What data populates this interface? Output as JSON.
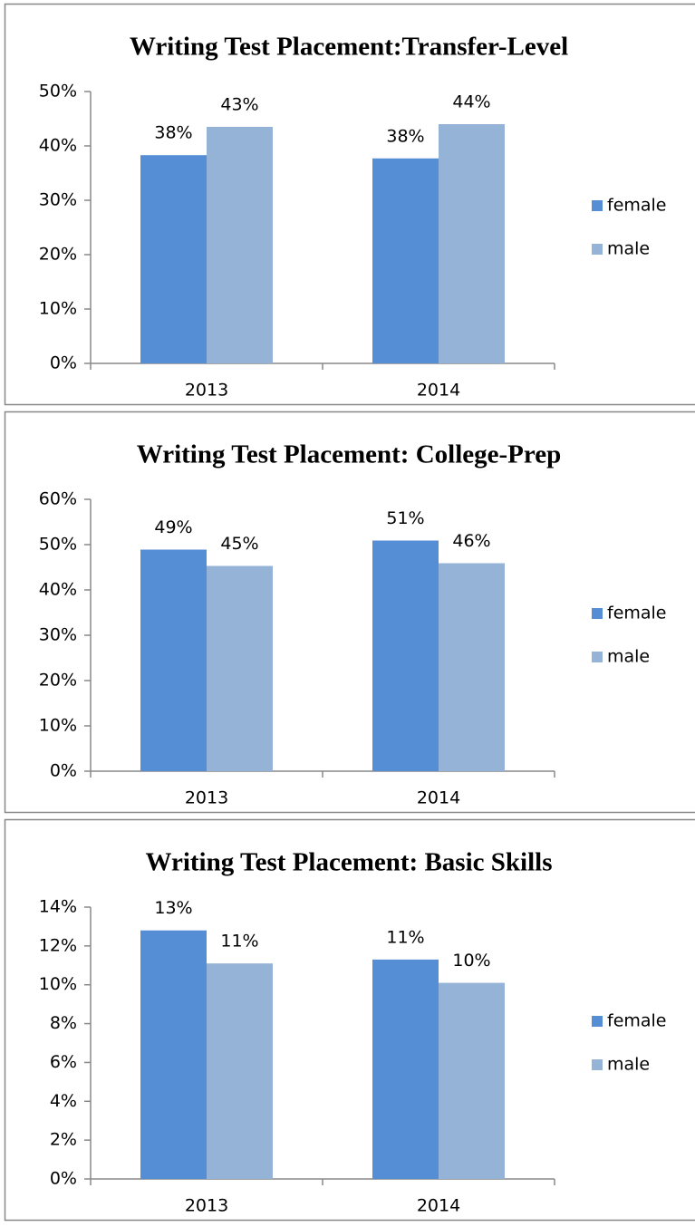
{
  "chart_data": [
    {
      "type": "bar",
      "title": "Writing Test Placement:Transfer-Level",
      "categories": [
        "2013",
        "2014"
      ],
      "series": [
        {
          "name": "female",
          "color": "#558ed5",
          "values": [
            38.3,
            37.7
          ],
          "value_labels": [
            "38%",
            "38%"
          ]
        },
        {
          "name": "male",
          "color": "#95b3d7",
          "values": [
            43.5,
            44.0
          ],
          "value_labels": [
            "43%",
            "44%"
          ]
        }
      ],
      "ylim": [
        0,
        50
      ],
      "yticks": [
        {
          "value": 0,
          "label": "0%"
        },
        {
          "value": 10,
          "label": "10%"
        },
        {
          "value": 20,
          "label": "20%"
        },
        {
          "value": 30,
          "label": "30%"
        },
        {
          "value": 40,
          "label": "40%"
        },
        {
          "value": 50,
          "label": "50%"
        }
      ],
      "legend": "right"
    },
    {
      "type": "bar",
      "title": "Writing Test Placement: College-Prep",
      "categories": [
        "2013",
        "2014"
      ],
      "series": [
        {
          "name": "female",
          "color": "#558ed5",
          "values": [
            48.9,
            50.9
          ],
          "value_labels": [
            "49%",
            "51%"
          ]
        },
        {
          "name": "male",
          "color": "#95b3d7",
          "values": [
            45.3,
            45.9
          ],
          "value_labels": [
            "45%",
            "46%"
          ]
        }
      ],
      "ylim": [
        0,
        60
      ],
      "yticks": [
        {
          "value": 0,
          "label": "0%"
        },
        {
          "value": 10,
          "label": "10%"
        },
        {
          "value": 20,
          "label": "20%"
        },
        {
          "value": 30,
          "label": "30%"
        },
        {
          "value": 40,
          "label": "40%"
        },
        {
          "value": 50,
          "label": "50%"
        },
        {
          "value": 60,
          "label": "60%"
        }
      ],
      "legend": "right"
    },
    {
      "type": "bar",
      "title": "Writing Test Placement: Basic Skills",
      "categories": [
        "2013",
        "2014"
      ],
      "series": [
        {
          "name": "female",
          "color": "#558ed5",
          "values": [
            12.8,
            11.3
          ],
          "value_labels": [
            "13%",
            "11%"
          ]
        },
        {
          "name": "male",
          "color": "#95b3d7",
          "values": [
            11.1,
            10.1
          ],
          "value_labels": [
            "11%",
            "10%"
          ]
        }
      ],
      "ylim": [
        0,
        14
      ],
      "yticks": [
        {
          "value": 0,
          "label": "0%"
        },
        {
          "value": 2,
          "label": "2%"
        },
        {
          "value": 4,
          "label": "4%"
        },
        {
          "value": 6,
          "label": "6%"
        },
        {
          "value": 8,
          "label": "8%"
        },
        {
          "value": 10,
          "label": "10%"
        },
        {
          "value": 12,
          "label": "12%"
        },
        {
          "value": 14,
          "label": "14%"
        }
      ],
      "legend": "right"
    }
  ]
}
